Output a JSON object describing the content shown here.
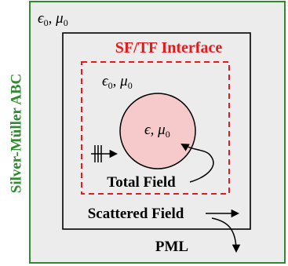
{
  "outer_region": {
    "side_label": "Silver-Müller ABC",
    "side_label_color": "#2e8b2e",
    "media_label": "ϵ",
    "media_subscript": "0",
    "mu_label": "μ",
    "mu_subscript": "0",
    "fill_color": "#ececec"
  },
  "pml_region": {
    "label": "PML"
  },
  "interface": {
    "label": "SF/TF Interface",
    "color": "#e41a1c",
    "media_label": "ϵ",
    "media_subscript": "0",
    "mu_label": "μ",
    "mu_subscript": "0"
  },
  "scatterer": {
    "eps_label": "ϵ",
    "mu_label": "μ",
    "mu_subscript": "0",
    "fill_color": "#f6c9cb"
  },
  "labels": {
    "total_field": "Total Field",
    "scattered_field": "Scattered Field"
  }
}
